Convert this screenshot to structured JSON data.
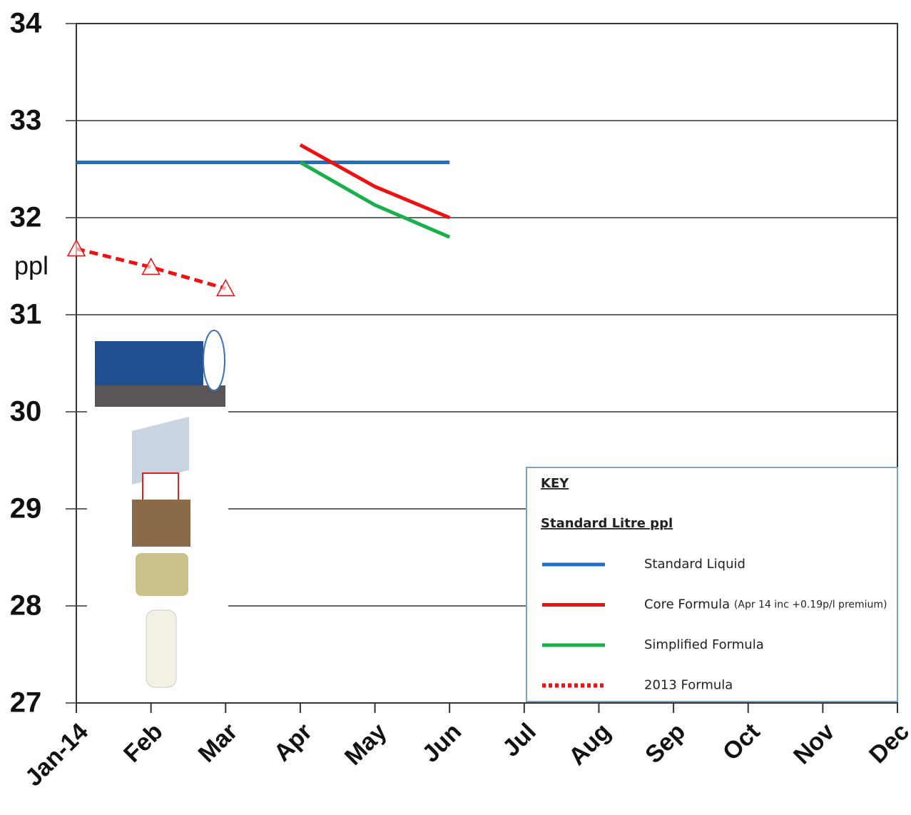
{
  "chart_data": {
    "type": "line",
    "y_label": "ppl",
    "categories": [
      "Jan-14",
      "Feb",
      "Mar",
      "Apr",
      "May",
      "Jun",
      "Jul",
      "Aug",
      "Sep",
      "Oct",
      "Nov",
      "Dec"
    ],
    "series": [
      {
        "name": "Standard Liquid",
        "color": "#1f6fc5",
        "dashed": false,
        "marker": null,
        "values": [
          32.57,
          32.57,
          32.57,
          32.57,
          32.57,
          32.57,
          null,
          null,
          null,
          null,
          null,
          null
        ]
      },
      {
        "name": "Core Formula",
        "note": "(Apr 14 inc +0.19p/l premium)",
        "color": "#ee1111",
        "dashed": false,
        "marker": null,
        "values": [
          null,
          null,
          null,
          32.75,
          32.32,
          32.0,
          null,
          null,
          null,
          null,
          null,
          null
        ]
      },
      {
        "name": "Simplified Formula",
        "color": "#18b04a",
        "dashed": false,
        "marker": null,
        "values": [
          null,
          null,
          null,
          32.57,
          32.13,
          31.8,
          null,
          null,
          null,
          null,
          null,
          null
        ]
      },
      {
        "name": "2013 Formula",
        "color": "#ee1111",
        "dashed": true,
        "marker": "triangle",
        "values": [
          31.68,
          31.49,
          31.27,
          null,
          null,
          null,
          null,
          null,
          null,
          null,
          null,
          null
        ]
      }
    ],
    "ylim": [
      27,
      34
    ],
    "yticks": [
      27,
      28,
      29,
      30,
      31,
      32,
      33,
      34
    ],
    "grid": true,
    "legend": {
      "title": "KEY",
      "subtitle": "Standard Litre ppl",
      "position": "lower right"
    }
  }
}
